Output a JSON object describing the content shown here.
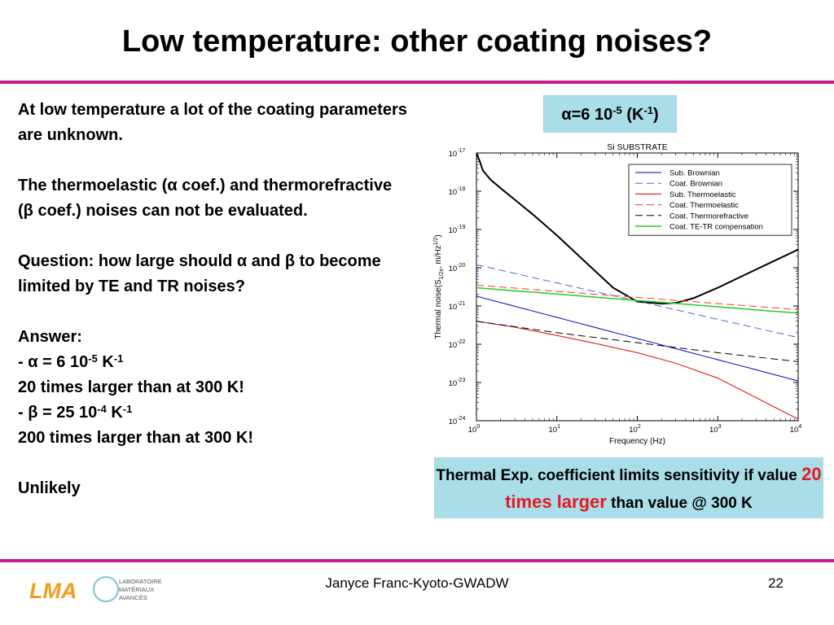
{
  "title": "Low temperature: other coating noises?",
  "body": {
    "p1": "At low temperature a lot of the coating parameters are unknown.",
    "p2a": "The thermoelastic (",
    "alpha": "α",
    "beta": "β",
    "p2b": " coef.) and thermorefractive (",
    "p2c": " coef.) noises can not be evaluated.",
    "p3a": "Question: how large should ",
    "p3b": " and ",
    "p3c": " to become limited by TE and TR noises?",
    "answer_label": "Answer:",
    "dash": "- ",
    "alpha_eq": " = 6 10",
    "alpha_exp": "-5",
    "unit_k": " K",
    "unit_exp": "-1",
    "alpha_note": "20 times larger than at 300 K!",
    "beta_eq": " = 25 10",
    "beta_exp": "-4",
    "beta_note": "200 times larger than at 300 K!",
    "conclusion": "Unlikely"
  },
  "alpha_box": {
    "pre": "α=6 10",
    "exp": "-5",
    "mid": " (K",
    "exp2": "-1",
    "post": ")"
  },
  "caption": {
    "text1": "Thermal Exp. coefficient limits sensitivity if value ",
    "highlight": "20 times larger",
    "text2": " than value @ 300 K",
    "highlight_color": "#e31b23"
  },
  "footer": {
    "text": "Janyce Franc-Kyoto-GWADW",
    "page": "22"
  },
  "logo": {
    "mark": "LMA",
    "line1": "LABORATOIRE",
    "line2": "MATÉRIAUX",
    "line3": "AVANCÉS"
  },
  "chart_data": {
    "type": "line",
    "title": "Si SUBSTRATE",
    "xlabel": "Frequency (Hz)",
    "ylabel": "Thermal noise(S",
    "ylabel_sub": "1/2x",
    "ylabel_tail": ", m/Hz",
    "ylabel_sup": "1/2",
    "ylabel_end": ")",
    "xscale": "log",
    "yscale": "log",
    "xlim": [
      1,
      10000
    ],
    "ylim": [
      1e-24,
      1e-17
    ],
    "x_tick_base": "10",
    "x_tick_exps": [
      "0",
      "1",
      "2",
      "3",
      "4"
    ],
    "y_tick_exps": [
      "-24",
      "-23",
      "-22",
      "-21",
      "-20",
      "-19",
      "-18",
      "-17"
    ],
    "legend_position": "top-right",
    "series": [
      {
        "name": "Total",
        "color": "#000000",
        "dash": "solid",
        "width": 2,
        "in_legend": false,
        "x": [
          1,
          1.1,
          1.2,
          1.5,
          2,
          3,
          5,
          10,
          20,
          50,
          100,
          200,
          300,
          500,
          1000,
          2000,
          5000,
          10000
        ],
        "y": [
          1e-17,
          6e-18,
          3.5e-18,
          2e-18,
          1.2e-18,
          6e-19,
          2.5e-19,
          7e-20,
          1.8e-20,
          3e-21,
          1.3e-21,
          1.15e-21,
          1.2e-21,
          1.6e-21,
          3e-21,
          6e-21,
          1.5e-20,
          3e-20
        ]
      },
      {
        "name": "Sub. Brownian",
        "color": "#0000cc",
        "dash": "solid",
        "width": 1,
        "in_legend": true,
        "x": [
          1,
          10000
        ],
        "y": [
          1.8e-21,
          1.1e-23
        ]
      },
      {
        "name": "Coat. Brownian",
        "color": "#4466ee",
        "dash": "dash",
        "width": 1,
        "in_legend": true,
        "x": [
          1,
          10000
        ],
        "y": [
          1.2e-20,
          1.5e-22
        ]
      },
      {
        "name": "Sub. Thermoelastic",
        "color": "#e00000",
        "dash": "solid",
        "width": 1,
        "in_legend": true,
        "x": [
          1,
          3,
          10,
          30,
          100,
          300,
          1000,
          3000,
          10000
        ],
        "y": [
          4e-22,
          2.8e-22,
          1.7e-22,
          1.05e-22,
          6e-23,
          3.2e-23,
          1.3e-23,
          4e-24,
          1.1e-24
        ]
      },
      {
        "name": "Coat. Thermoelastic",
        "color": "#ff3030",
        "dash": "dash",
        "width": 1,
        "in_legend": true,
        "x": [
          1,
          10000
        ],
        "y": [
          3.5e-21,
          8e-22
        ]
      },
      {
        "name": "Coat. Thermorefractive",
        "color": "#000000",
        "dash": "dash",
        "width": 1,
        "in_legend": true,
        "x": [
          1,
          10,
          100,
          1000,
          10000
        ],
        "y": [
          4e-22,
          2e-22,
          1.1e-22,
          6e-23,
          3.5e-23
        ]
      },
      {
        "name": "Coat. TE-TR compensation",
        "color": "#22cc22",
        "dash": "solid",
        "width": 1.5,
        "in_legend": true,
        "x": [
          1,
          10000
        ],
        "y": [
          3e-21,
          6.5e-22
        ]
      }
    ]
  }
}
